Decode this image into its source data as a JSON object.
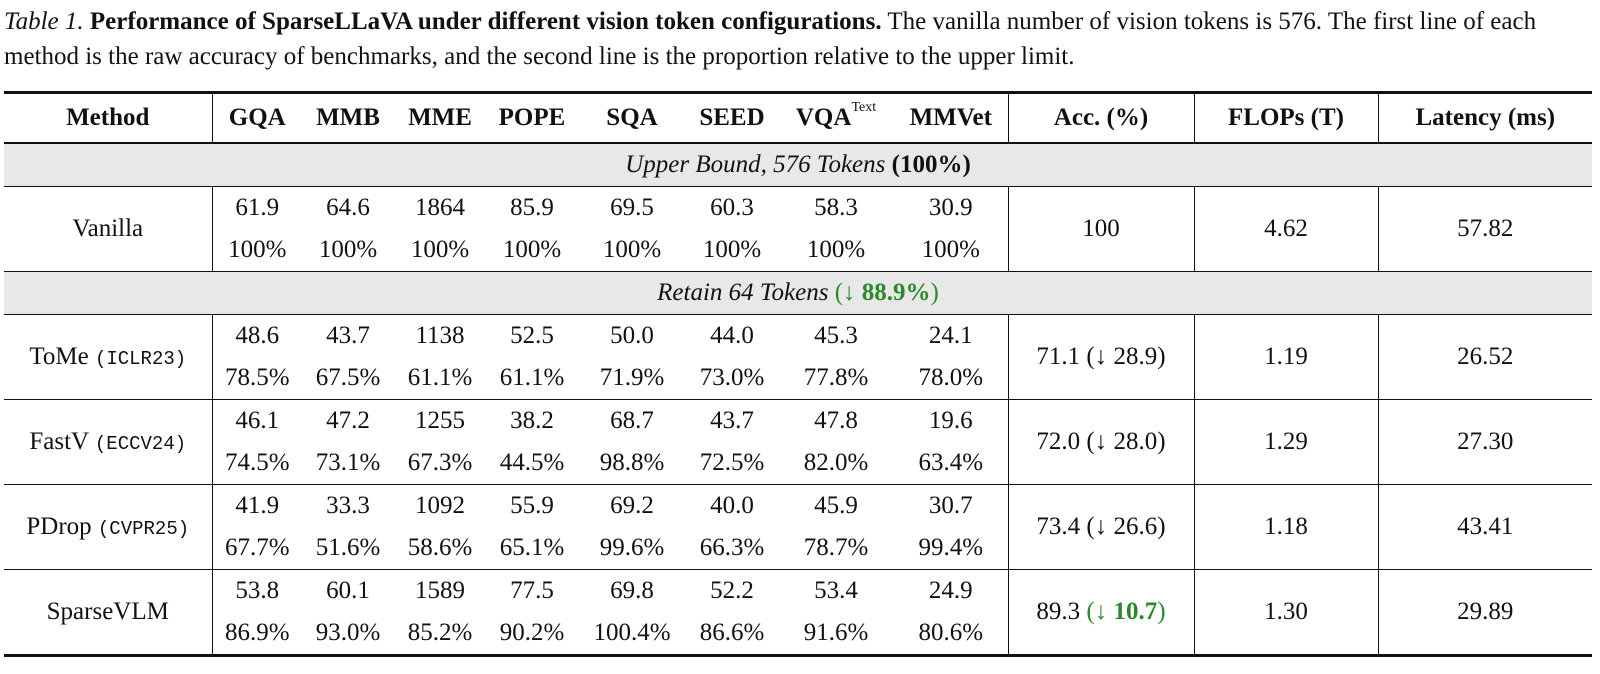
{
  "caption": {
    "label": "Table 1.",
    "title": "Performance of SparseLLaVA under different vision token configurations.",
    "text": "The vanilla number of vision tokens is 576. The first line of each method is the raw accuracy of benchmarks, and the second line is the proportion relative to the upper limit."
  },
  "headers": {
    "method": "Method",
    "gqa": "GQA",
    "mmb": "MMB",
    "mme": "MME",
    "pope": "POPE",
    "sqa": "SQA",
    "seed": "SEED",
    "vqa": "VQA",
    "vqa_sup": "Text",
    "mmvet": "MMVet",
    "acc": "Acc. (%)",
    "flops": "FLOPs (T)",
    "latency": "Latency (ms)"
  },
  "sections": {
    "upper": {
      "text": "Upper Bound, 576 Tokens",
      "pct": "(100%)"
    },
    "retain": {
      "text": "Retain 64 Tokens",
      "arrow": "(↓",
      "pct": "88.9%",
      "close": ")"
    }
  },
  "rows": {
    "vanilla": {
      "method": "Vanilla",
      "venue": "",
      "raw": [
        "61.9",
        "64.6",
        "1864",
        "85.9",
        "69.5",
        "60.3",
        "58.3",
        "30.9"
      ],
      "rel": [
        "100%",
        "100%",
        "100%",
        "100%",
        "100%",
        "100%",
        "100%",
        "100%"
      ],
      "acc": "100",
      "acc_delta": "",
      "flops": "4.62",
      "latency": "57.82"
    },
    "tome": {
      "method": "ToMe",
      "venue": "(ICLR23)",
      "raw": [
        "48.6",
        "43.7",
        "1138",
        "52.5",
        "50.0",
        "44.0",
        "45.3",
        "24.1"
      ],
      "rel": [
        "78.5%",
        "67.5%",
        "61.1%",
        "61.1%",
        "71.9%",
        "73.0%",
        "77.8%",
        "78.0%"
      ],
      "acc": "71.1",
      "acc_delta": "(↓ 28.9)",
      "flops": "1.19",
      "latency": "26.52"
    },
    "fastv": {
      "method": "FastV",
      "venue": "(ECCV24)",
      "raw": [
        "46.1",
        "47.2",
        "1255",
        "38.2",
        "68.7",
        "43.7",
        "47.8",
        "19.6"
      ],
      "rel": [
        "74.5%",
        "73.1%",
        "67.3%",
        "44.5%",
        "98.8%",
        "72.5%",
        "82.0%",
        "63.4%"
      ],
      "acc": "72.0",
      "acc_delta": "(↓ 28.0)",
      "flops": "1.29",
      "latency": "27.30"
    },
    "pdrop": {
      "method": "PDrop",
      "venue": "(CVPR25)",
      "raw": [
        "41.9",
        "33.3",
        "1092",
        "55.9",
        "69.2",
        "40.0",
        "45.9",
        "30.7"
      ],
      "rel": [
        "67.7%",
        "51.6%",
        "58.6%",
        "65.1%",
        "99.6%",
        "66.3%",
        "78.7%",
        "99.4%"
      ],
      "acc": "73.4",
      "acc_delta": "(↓ 26.6)",
      "flops": "1.18",
      "latency": "43.41"
    },
    "sparsevlm": {
      "method": "SparseVLM",
      "venue": "",
      "raw": [
        "53.8",
        "60.1",
        "1589",
        "77.5",
        "69.8",
        "52.2",
        "53.4",
        "24.9"
      ],
      "rel": [
        "86.9%",
        "93.0%",
        "85.2%",
        "90.2%",
        "100.4%",
        "86.6%",
        "91.6%",
        "80.6%"
      ],
      "acc": "89.3",
      "acc_arrow": "(↓",
      "acc_delta_val": "10.7",
      "acc_close": ")",
      "flops": "1.30",
      "latency": "29.89"
    }
  }
}
